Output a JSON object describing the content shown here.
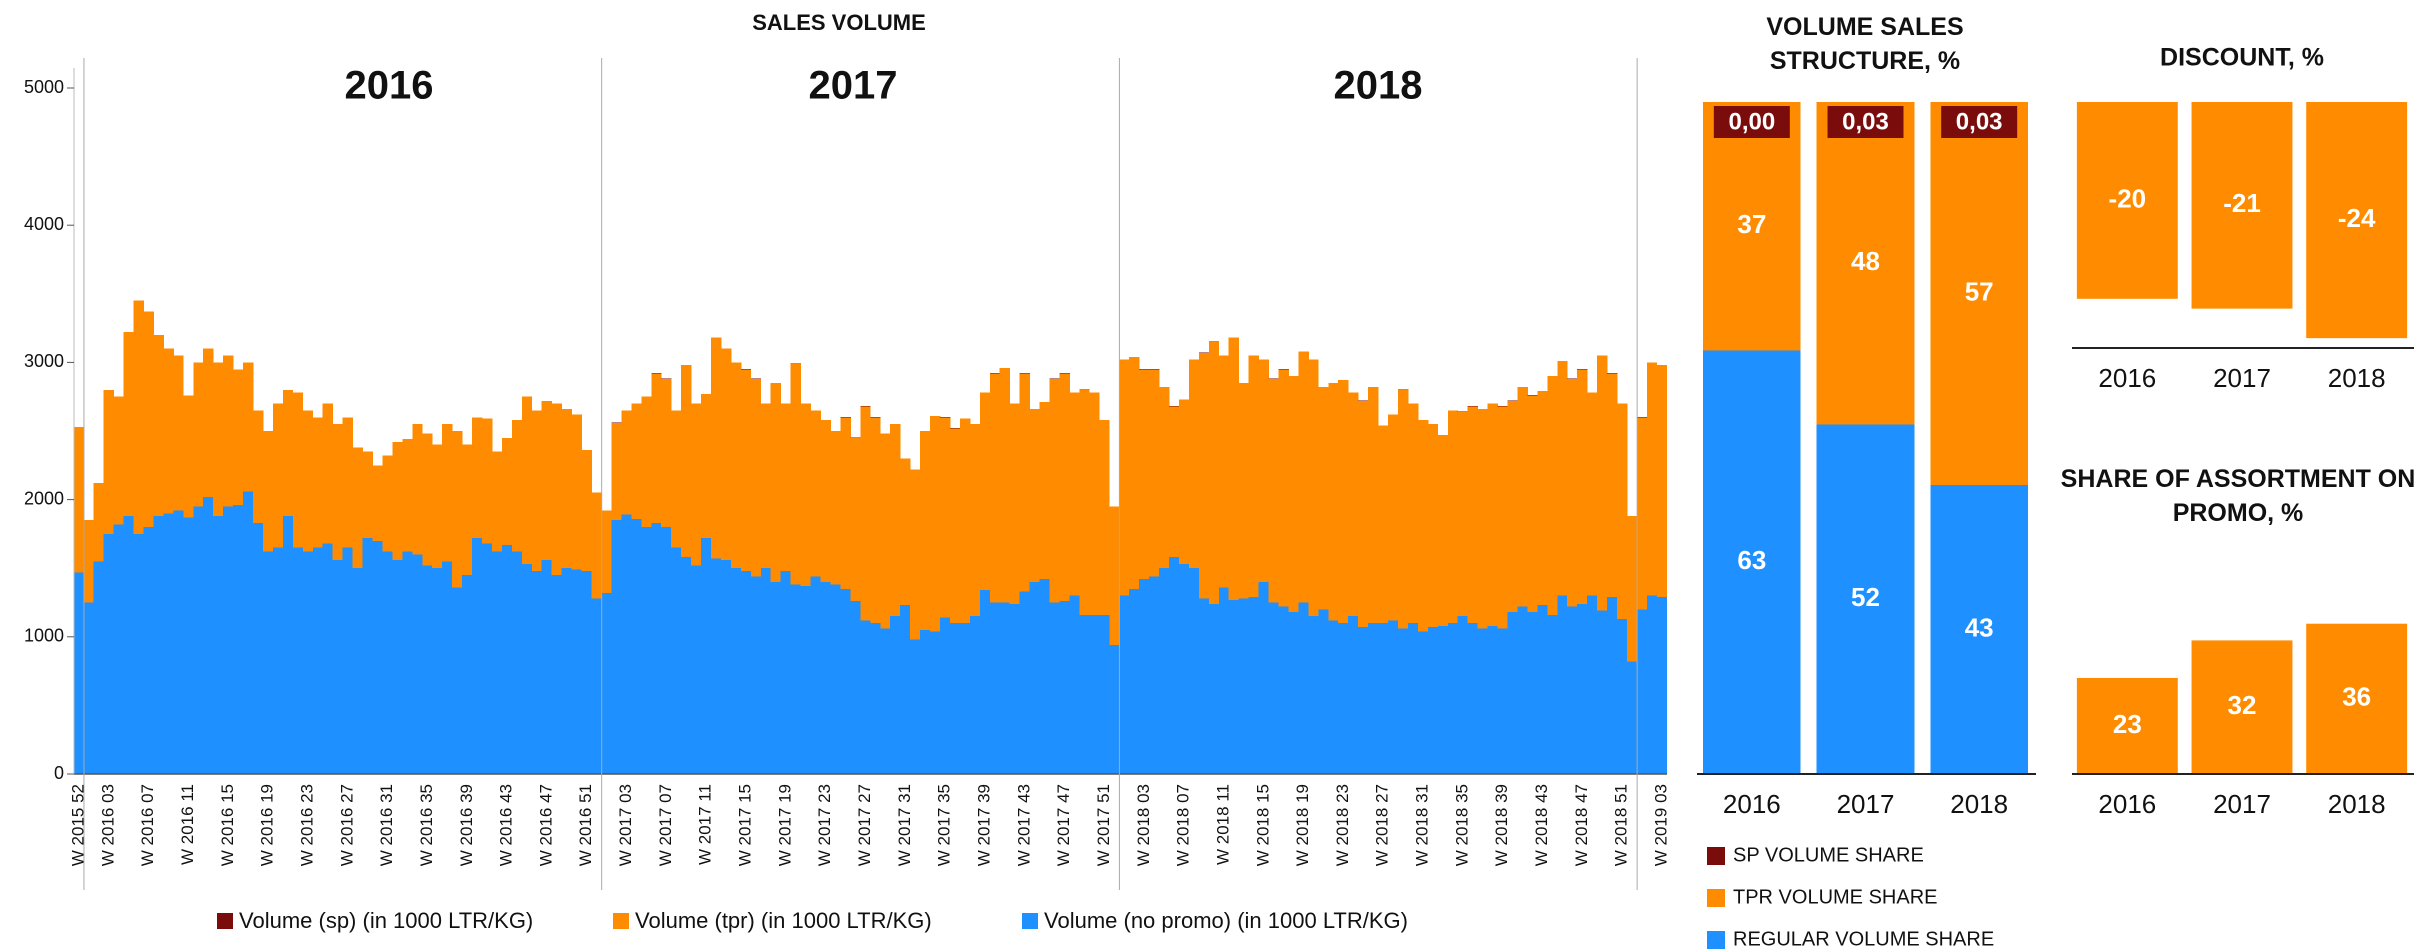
{
  "chart_data": [
    {
      "type": "bar",
      "stacked": true,
      "title": "SALES VOLUME",
      "annotations": [
        "2016",
        "2017",
        "2018"
      ],
      "categories": [
        "W 2015 52",
        null,
        null,
        "W 2016 03",
        null,
        null,
        null,
        "W 2016 07",
        null,
        null,
        null,
        "W 2016 11",
        null,
        null,
        null,
        "W 2016 15",
        null,
        null,
        null,
        "W 2016 19",
        null,
        null,
        null,
        "W 2016 23",
        null,
        null,
        null,
        "W 2016 27",
        null,
        null,
        null,
        "W 2016 31",
        null,
        null,
        null,
        "W 2016 35",
        null,
        null,
        null,
        "W 2016 39",
        null,
        null,
        null,
        "W 2016 43",
        null,
        null,
        null,
        "W 2016 47",
        null,
        null,
        null,
        "W 2016 51",
        null,
        null,
        null,
        "W 2017 03",
        null,
        null,
        null,
        "W 2017 07",
        null,
        null,
        null,
        "W 2017 11",
        null,
        null,
        null,
        "W 2017 15",
        null,
        null,
        null,
        "W 2017 19",
        null,
        null,
        null,
        "W 2017 23",
        null,
        null,
        null,
        "W 2017 27",
        null,
        null,
        null,
        "W 2017 31",
        null,
        null,
        null,
        "W 2017 35",
        null,
        null,
        null,
        "W 2017 39",
        null,
        null,
        null,
        "W 2017 43",
        null,
        null,
        null,
        "W 2017 47",
        null,
        null,
        null,
        "W 2017 51",
        null,
        null,
        null,
        "W 2018 03",
        null,
        null,
        null,
        "W 2018 07",
        null,
        null,
        null,
        "W 2018 11",
        null,
        null,
        null,
        "W 2018 15",
        null,
        null,
        null,
        "W 2018 19",
        null,
        null,
        null,
        "W 2018 23",
        null,
        null,
        null,
        "W 2018 27",
        null,
        null,
        null,
        "W 2018 31",
        null,
        null,
        null,
        "W 2018 35",
        null,
        null,
        null,
        "W 2018 39",
        null,
        null,
        null,
        "W 2018 43",
        null,
        null,
        null,
        "W 2018 47",
        null,
        null,
        null,
        "W 2018 51",
        null,
        null,
        null,
        "W 2019 03"
      ],
      "series": [
        {
          "name": "Volume (sp) (in 1000 LTR/KG)",
          "color": "#7b0c0c",
          "values": [
            0,
            0,
            0,
            0,
            0,
            0,
            0,
            0,
            0,
            0,
            0,
            0,
            0,
            0,
            0,
            0,
            0,
            0,
            0,
            0,
            0,
            0,
            0,
            0,
            0,
            0,
            0,
            0,
            0,
            0,
            0,
            0,
            0,
            0,
            0,
            0,
            0,
            0,
            0,
            0,
            0,
            0,
            0,
            0,
            0,
            0,
            0,
            0,
            0,
            0,
            0,
            0,
            0,
            1,
            1,
            1,
            1,
            1,
            1,
            1,
            1,
            1,
            1,
            1,
            1,
            1,
            1,
            1,
            1,
            1,
            1,
            1,
            1,
            1,
            1,
            1,
            1,
            1,
            1,
            1,
            1,
            1,
            1,
            1,
            1,
            1,
            1,
            1,
            1,
            1,
            1,
            1,
            1,
            1,
            1,
            1,
            1,
            1,
            1,
            1,
            1,
            1,
            1,
            1,
            1,
            1,
            1,
            1,
            1,
            1,
            1,
            1,
            1,
            1,
            1,
            1,
            1,
            1,
            1,
            1,
            1,
            1,
            1,
            1,
            1,
            1,
            1,
            1,
            1,
            1,
            1,
            1,
            1,
            1,
            1,
            1,
            1,
            1,
            1,
            1,
            1,
            1,
            1,
            1,
            1,
            1,
            1,
            1,
            1,
            1,
            1,
            1,
            1,
            1,
            1,
            1,
            1,
            1,
            1,
            1
          ]
        },
        {
          "name": "Volume (tpr) (in 1000 LTR/KG)",
          "color": "#ff8c00",
          "values": [
            1060,
            600,
            570,
            1050,
            930,
            1340,
            1700,
            1570,
            1320,
            1200,
            1130,
            890,
            1050,
            1080,
            1120,
            1100,
            990,
            940,
            820,
            880,
            1050,
            920,
            1130,
            1030,
            950,
            1020,
            990,
            950,
            880,
            630,
            550,
            700,
            860,
            820,
            950,
            960,
            900,
            1000,
            1140,
            950,
            880,
            910,
            730,
            780,
            960,
            1220,
            1170,
            1160,
            1250,
            1160,
            1130,
            880,
            770,
            600,
            710,
            760,
            840,
            950,
            1090,
            1080,
            1000,
            1400,
            1180,
            1050,
            1610,
            1540,
            1500,
            1470,
            1440,
            1200,
            1450,
            1220,
            1610,
            1330,
            1210,
            1180,
            1120,
            1250,
            1190,
            1560,
            1500,
            1420,
            1400,
            1070,
            1240,
            1450,
            1570,
            1460,
            1420,
            1490,
            1400,
            1440,
            1670,
            1710,
            1460,
            1590,
            1260,
            1290,
            1630,
            1660,
            1480,
            1640,
            1620,
            1420,
            1010,
            1720,
            1690,
            1530,
            1510,
            1320,
            1100,
            1200,
            1520,
            1790,
            1910,
            1690,
            1910,
            1570,
            1760,
            1620,
            1630,
            1730,
            1720,
            1830,
            1870,
            1620,
            1730,
            1770,
            1630,
            1650,
            1720,
            1440,
            1500,
            1740,
            1600,
            1540,
            1480,
            1390,
            1550,
            1490,
            1580,
            1600,
            1620,
            1620,
            1540,
            1600,
            1580,
            1560,
            1740,
            1710,
            1660,
            1710,
            1480,
            1860,
            1630,
            1570,
            1060,
            1400,
            1700,
            1690
          ]
        },
        {
          "name": "Volume (no promo) (in 1000 LTR/KG)",
          "color": "#1e90ff",
          "values": [
            1470,
            1250,
            1550,
            1750,
            1820,
            1880,
            1750,
            1800,
            1880,
            1900,
            1920,
            1870,
            1950,
            2020,
            1880,
            1950,
            1960,
            2060,
            1830,
            1620,
            1650,
            1880,
            1650,
            1620,
            1650,
            1680,
            1560,
            1650,
            1500,
            1720,
            1700,
            1620,
            1560,
            1620,
            1600,
            1520,
            1500,
            1550,
            1360,
            1450,
            1720,
            1680,
            1620,
            1670,
            1620,
            1530,
            1480,
            1560,
            1450,
            1500,
            1490,
            1480,
            1280,
            1320,
            1850,
            1890,
            1860,
            1800,
            1830,
            1800,
            1650,
            1580,
            1520,
            1720,
            1570,
            1560,
            1500,
            1480,
            1440,
            1500,
            1400,
            1480,
            1380,
            1370,
            1440,
            1400,
            1380,
            1350,
            1260,
            1120,
            1100,
            1060,
            1150,
            1230,
            980,
            1050,
            1040,
            1140,
            1100,
            1100,
            1150,
            1340,
            1250,
            1250,
            1240,
            1330,
            1400,
            1420,
            1250,
            1260,
            1300,
            1160,
            1160,
            1160,
            940,
            1300,
            1350,
            1420,
            1440,
            1500,
            1580,
            1530,
            1500,
            1280,
            1240,
            1360,
            1270,
            1280,
            1290,
            1400,
            1250,
            1220,
            1180,
            1250,
            1150,
            1200,
            1120,
            1100,
            1150,
            1070,
            1100,
            1100,
            1120,
            1060,
            1100,
            1040,
            1070,
            1080,
            1100,
            1150,
            1100,
            1060,
            1080,
            1060,
            1180,
            1220,
            1180,
            1230,
            1160,
            1300,
            1220,
            1240,
            1300,
            1190,
            1290,
            1130,
            820,
            1200,
            1300,
            1290
          ]
        }
      ],
      "ylim": [
        0,
        5000
      ],
      "yticks": [
        0,
        1000,
        2000,
        3000,
        4000,
        5000
      ]
    },
    {
      "type": "bar",
      "stacked": true,
      "title": "VOLUME SALES STRUCTURE, %",
      "categories": [
        "2016",
        "2017",
        "2018"
      ],
      "series": [
        {
          "name": "SP VOLUME SHARE",
          "color": "#7b0c0c",
          "values": [
            0,
            0.03,
            0.03
          ],
          "value_labels": [
            "0,00",
            "0,03",
            "0,03"
          ]
        },
        {
          "name": "TPR VOLUME SHARE",
          "color": "#ff8c00",
          "values": [
            37,
            48,
            57
          ]
        },
        {
          "name": "REGULAR VOLUME SHARE",
          "color": "#1e90ff",
          "values": [
            63,
            52,
            43
          ]
        }
      ],
      "ylim": [
        0,
        100
      ]
    },
    {
      "type": "bar",
      "title": "DISCOUNT, %",
      "categories": [
        "2016",
        "2017",
        "2018"
      ],
      "values": [
        -20,
        -21,
        -24
      ],
      "color": "#ff8c00",
      "ylim": [
        -25,
        0
      ]
    },
    {
      "type": "bar",
      "title": "SHARE OF ASSORTMENT ON PROMO, %",
      "categories": [
        "2016",
        "2017",
        "2018"
      ],
      "values": [
        23,
        32,
        36
      ],
      "color": "#ff8c00",
      "ylim": [
        0,
        40
      ]
    }
  ]
}
